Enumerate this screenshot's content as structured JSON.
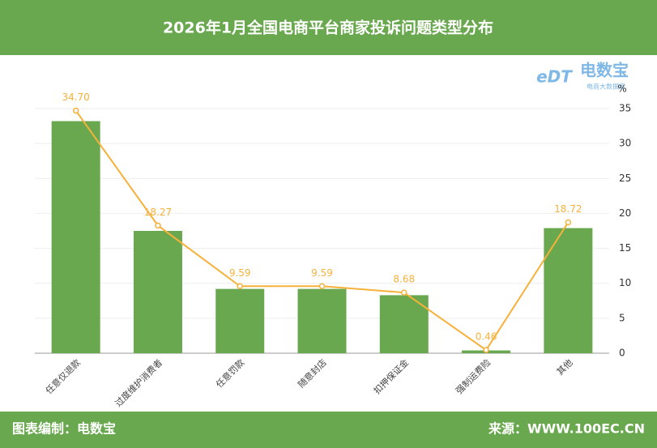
{
  "chart_data": {
    "type": "bar",
    "title": "2026年1月全国电商平台商家投诉问题类型分布",
    "y_unit": "%",
    "categories": [
      "任意仅退款",
      "过度维护消费者",
      "任意罚款",
      "随意封店",
      "扣押保证金",
      "强制运费险",
      "其他"
    ],
    "series": [
      {
        "type": "bar",
        "color": "#6aa84f",
        "values": [
          33.2,
          17.5,
          9.2,
          9.2,
          8.3,
          0.4,
          17.9
        ]
      },
      {
        "type": "line",
        "color": "#f6b13b",
        "values": [
          34.7,
          18.27,
          9.59,
          9.59,
          8.68,
          0.46,
          18.72
        ],
        "value_labels": [
          "34.70",
          "18.27",
          "9.59",
          "9.59",
          "8.68",
          "0.46",
          "18.72"
        ]
      }
    ],
    "ylim": [
      0,
      35
    ],
    "yticks": [
      0,
      5,
      10,
      15,
      20,
      25,
      30,
      35
    ],
    "grid": true
  },
  "logo": {
    "mark": "eDT",
    "name": "电数宝",
    "subtitle": "电商大数据库"
  },
  "footer": {
    "left": "图表编制：电数宝",
    "right": "来源：WWW.100EC.CN"
  }
}
